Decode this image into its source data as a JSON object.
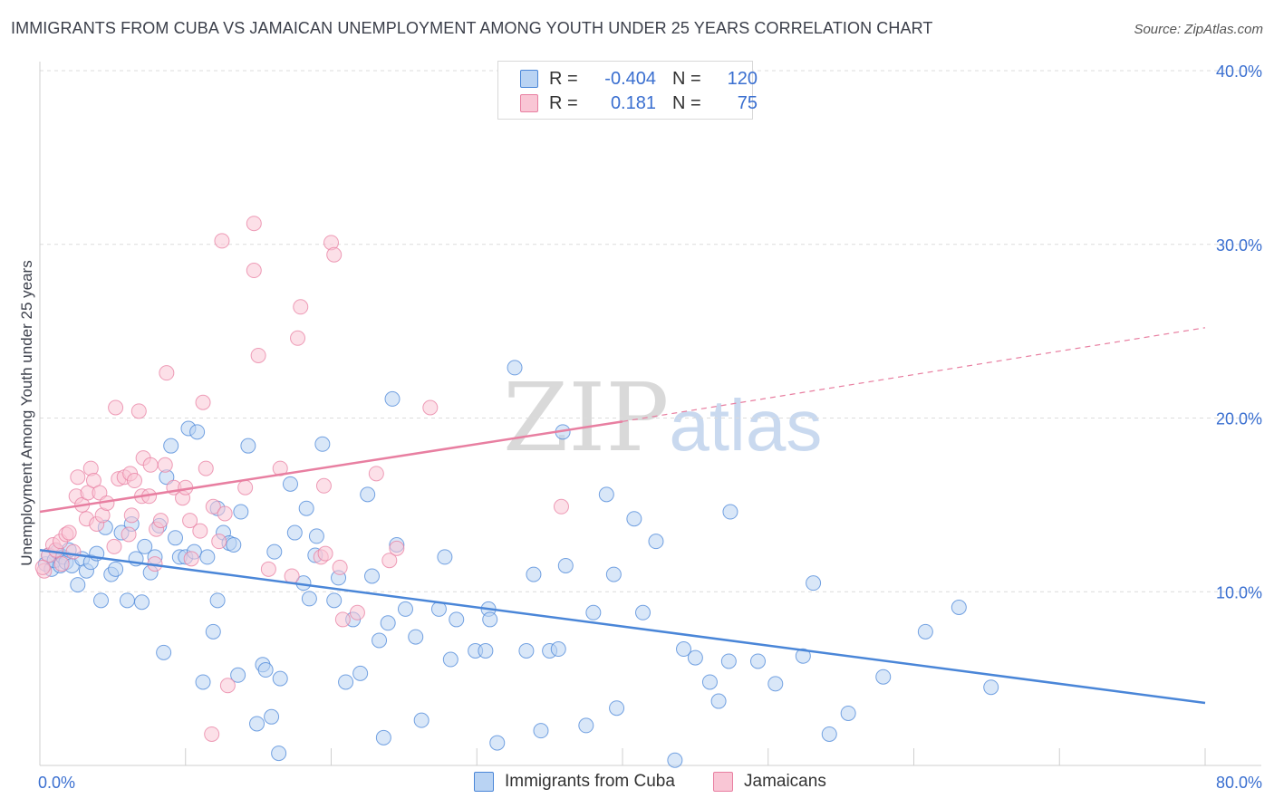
{
  "header": {
    "title": "IMMIGRANTS FROM CUBA VS JAMAICAN UNEMPLOYMENT AMONG YOUTH UNDER 25 YEARS CORRELATION CHART",
    "source": "Source: ZipAtlas.com"
  },
  "watermark": {
    "zip": "ZIP",
    "atlas": "atlas"
  },
  "legend": {
    "rows": [
      {
        "r_label": "R =",
        "r_value": "-0.404",
        "n_label": "N =",
        "n_value": "120",
        "color": "#a9c8f0"
      },
      {
        "r_label": "R =",
        "r_value": "0.181",
        "n_label": "N =",
        "n_value": "75",
        "color": "#f7b8cb"
      }
    ]
  },
  "chart_data": {
    "type": "scatter",
    "title": "IMMIGRANTS FROM CUBA VS JAMAICAN UNEMPLOYMENT AMONG YOUTH UNDER 25 YEARS CORRELATION CHART",
    "xlabel": "",
    "ylabel": "Unemployment Among Youth under 25 years",
    "xlim": [
      0,
      80
    ],
    "ylim": [
      0,
      40
    ],
    "x_tick_labels": [
      "0.0%",
      "80.0%"
    ],
    "y_tick_labels": [
      "10.0%",
      "20.0%",
      "30.0%",
      "40.0%"
    ],
    "y_ticks": [
      10,
      20,
      30,
      40
    ],
    "grid": true,
    "legend_position": "bottom-center",
    "series": [
      {
        "name": "Immigrants from Cuba",
        "color": "#4a86d8",
        "fill": "#b9d3f3",
        "trend": {
          "x": [
            0,
            80
          ],
          "y": [
            12.4,
            3.6
          ],
          "dashed_from": null
        },
        "points": [
          [
            0.4,
            11.6
          ],
          [
            0.6,
            12.1
          ],
          [
            0.8,
            11.3
          ],
          [
            1.0,
            11.8
          ],
          [
            1.2,
            12.3
          ],
          [
            1.4,
            11.5
          ],
          [
            1.6,
            12.0
          ],
          [
            1.8,
            11.7
          ],
          [
            2.0,
            12.4
          ],
          [
            2.2,
            11.5
          ],
          [
            2.6,
            10.4
          ],
          [
            2.9,
            11.9
          ],
          [
            3.2,
            11.2
          ],
          [
            3.5,
            11.7
          ],
          [
            3.9,
            12.2
          ],
          [
            4.2,
            9.5
          ],
          [
            4.5,
            13.7
          ],
          [
            4.9,
            11.0
          ],
          [
            5.2,
            11.3
          ],
          [
            5.6,
            13.4
          ],
          [
            6.0,
            9.5
          ],
          [
            6.3,
            13.9
          ],
          [
            6.6,
            11.9
          ],
          [
            7.0,
            9.4
          ],
          [
            7.2,
            12.6
          ],
          [
            7.6,
            11.1
          ],
          [
            7.9,
            12.0
          ],
          [
            8.2,
            13.8
          ],
          [
            8.5,
            6.5
          ],
          [
            8.7,
            16.6
          ],
          [
            9.0,
            18.4
          ],
          [
            9.3,
            13.1
          ],
          [
            9.6,
            12.0
          ],
          [
            10.0,
            12.0
          ],
          [
            10.2,
            19.4
          ],
          [
            10.6,
            12.3
          ],
          [
            10.8,
            19.2
          ],
          [
            11.2,
            4.8
          ],
          [
            11.5,
            12.0
          ],
          [
            11.9,
            7.7
          ],
          [
            12.2,
            14.8
          ],
          [
            12.2,
            9.5
          ],
          [
            12.6,
            13.4
          ],
          [
            13.0,
            12.8
          ],
          [
            13.3,
            12.7
          ],
          [
            13.6,
            5.2
          ],
          [
            13.8,
            14.6
          ],
          [
            14.3,
            18.4
          ],
          [
            14.9,
            2.4
          ],
          [
            15.3,
            5.8
          ],
          [
            15.5,
            5.5
          ],
          [
            16.1,
            12.3
          ],
          [
            15.9,
            2.8
          ],
          [
            16.5,
            5.0
          ],
          [
            16.4,
            0.7
          ],
          [
            17.2,
            16.2
          ],
          [
            17.5,
            13.4
          ],
          [
            18.1,
            10.5
          ],
          [
            18.3,
            14.8
          ],
          [
            18.5,
            9.6
          ],
          [
            19.0,
            13.2
          ],
          [
            18.9,
            12.1
          ],
          [
            19.4,
            18.5
          ],
          [
            20.2,
            9.5
          ],
          [
            20.5,
            10.8
          ],
          [
            21.0,
            4.8
          ],
          [
            21.5,
            8.4
          ],
          [
            22.0,
            5.3
          ],
          [
            22.5,
            15.6
          ],
          [
            22.8,
            10.9
          ],
          [
            23.3,
            7.2
          ],
          [
            23.6,
            1.6
          ],
          [
            23.9,
            8.2
          ],
          [
            24.2,
            21.1
          ],
          [
            24.5,
            12.7
          ],
          [
            25.1,
            9.0
          ],
          [
            25.8,
            7.4
          ],
          [
            26.2,
            2.6
          ],
          [
            27.4,
            9.0
          ],
          [
            27.8,
            12.0
          ],
          [
            28.2,
            6.1
          ],
          [
            28.6,
            8.4
          ],
          [
            29.9,
            6.6
          ],
          [
            30.6,
            6.6
          ],
          [
            30.8,
            9.0
          ],
          [
            30.9,
            8.4
          ],
          [
            31.4,
            1.3
          ],
          [
            32.6,
            22.9
          ],
          [
            33.4,
            6.6
          ],
          [
            33.9,
            11.0
          ],
          [
            34.4,
            2.0
          ],
          [
            35.0,
            6.6
          ],
          [
            35.6,
            6.7
          ],
          [
            36.1,
            11.5
          ],
          [
            35.9,
            19.2
          ],
          [
            37.5,
            2.3
          ],
          [
            38.0,
            8.8
          ],
          [
            38.9,
            15.6
          ],
          [
            39.4,
            11.0
          ],
          [
            39.6,
            3.3
          ],
          [
            40.8,
            14.2
          ],
          [
            41.4,
            8.8
          ],
          [
            42.3,
            12.9
          ],
          [
            43.6,
            0.3
          ],
          [
            44.2,
            6.7
          ],
          [
            45.0,
            6.2
          ],
          [
            46.0,
            4.8
          ],
          [
            46.6,
            3.7
          ],
          [
            47.4,
            14.6
          ],
          [
            47.3,
            6.0
          ],
          [
            49.3,
            6.0
          ],
          [
            50.5,
            4.7
          ],
          [
            52.4,
            6.3
          ],
          [
            53.1,
            10.5
          ],
          [
            54.2,
            1.8
          ],
          [
            55.5,
            3.0
          ],
          [
            57.9,
            5.1
          ],
          [
            60.8,
            7.7
          ],
          [
            63.1,
            9.1
          ],
          [
            65.3,
            4.5
          ]
        ]
      },
      {
        "name": "Jamaicans",
        "color": "#e87fa1",
        "fill": "#f9c6d5",
        "trend": {
          "x": [
            0,
            40,
            80
          ],
          "y": [
            14.6,
            19.8,
            25.2
          ],
          "dashed_from": 40
        },
        "points": [
          [
            0.3,
            11.2
          ],
          [
            0.6,
            12.1
          ],
          [
            0.9,
            12.7
          ],
          [
            1.1,
            12.4
          ],
          [
            1.4,
            12.9
          ],
          [
            1.5,
            11.6
          ],
          [
            1.8,
            13.3
          ],
          [
            2.0,
            13.4
          ],
          [
            2.3,
            12.3
          ],
          [
            2.5,
            15.5
          ],
          [
            2.6,
            16.6
          ],
          [
            2.9,
            15.0
          ],
          [
            3.2,
            14.2
          ],
          [
            3.3,
            15.7
          ],
          [
            3.5,
            17.1
          ],
          [
            3.7,
            16.4
          ],
          [
            3.9,
            13.9
          ],
          [
            4.1,
            15.7
          ],
          [
            4.3,
            14.4
          ],
          [
            4.6,
            15.1
          ],
          [
            5.1,
            12.6
          ],
          [
            5.2,
            20.6
          ],
          [
            5.4,
            16.5
          ],
          [
            5.8,
            16.6
          ],
          [
            6.1,
            13.3
          ],
          [
            6.2,
            16.8
          ],
          [
            6.3,
            14.4
          ],
          [
            6.5,
            16.4
          ],
          [
            6.8,
            20.4
          ],
          [
            7.0,
            15.5
          ],
          [
            7.1,
            17.7
          ],
          [
            7.5,
            15.5
          ],
          [
            7.6,
            17.3
          ],
          [
            7.9,
            11.6
          ],
          [
            8.0,
            13.6
          ],
          [
            8.3,
            14.1
          ],
          [
            8.6,
            17.3
          ],
          [
            8.7,
            22.6
          ],
          [
            9.2,
            16.0
          ],
          [
            9.8,
            15.4
          ],
          [
            10.0,
            16.0
          ],
          [
            10.3,
            14.1
          ],
          [
            10.4,
            11.9
          ],
          [
            11.0,
            13.5
          ],
          [
            11.2,
            20.9
          ],
          [
            11.4,
            17.1
          ],
          [
            11.9,
            14.9
          ],
          [
            12.3,
            12.9
          ],
          [
            12.5,
            30.2
          ],
          [
            12.9,
            4.6
          ],
          [
            12.7,
            14.5
          ],
          [
            11.8,
            1.8
          ],
          [
            14.1,
            16.0
          ],
          [
            14.7,
            28.5
          ],
          [
            14.7,
            31.2
          ],
          [
            15.0,
            23.6
          ],
          [
            15.7,
            11.3
          ],
          [
            16.5,
            17.1
          ],
          [
            17.3,
            10.9
          ],
          [
            17.7,
            24.6
          ],
          [
            17.9,
            26.4
          ],
          [
            19.3,
            12.0
          ],
          [
            19.5,
            16.1
          ],
          [
            19.6,
            12.2
          ],
          [
            20.0,
            30.1
          ],
          [
            20.2,
            29.4
          ],
          [
            20.6,
            11.4
          ],
          [
            20.8,
            8.4
          ],
          [
            21.8,
            8.8
          ],
          [
            23.1,
            16.8
          ],
          [
            24.0,
            11.8
          ],
          [
            24.5,
            12.5
          ],
          [
            26.8,
            20.6
          ],
          [
            35.8,
            14.9
          ],
          [
            0.2,
            11.4
          ]
        ]
      }
    ]
  },
  "bottom_legend": [
    {
      "label": "Immigrants from Cuba",
      "color": "#b9d3f3",
      "border": "#4a86d8"
    },
    {
      "label": "Jamaicans",
      "color": "#f9c6d5",
      "border": "#e87fa1"
    }
  ]
}
